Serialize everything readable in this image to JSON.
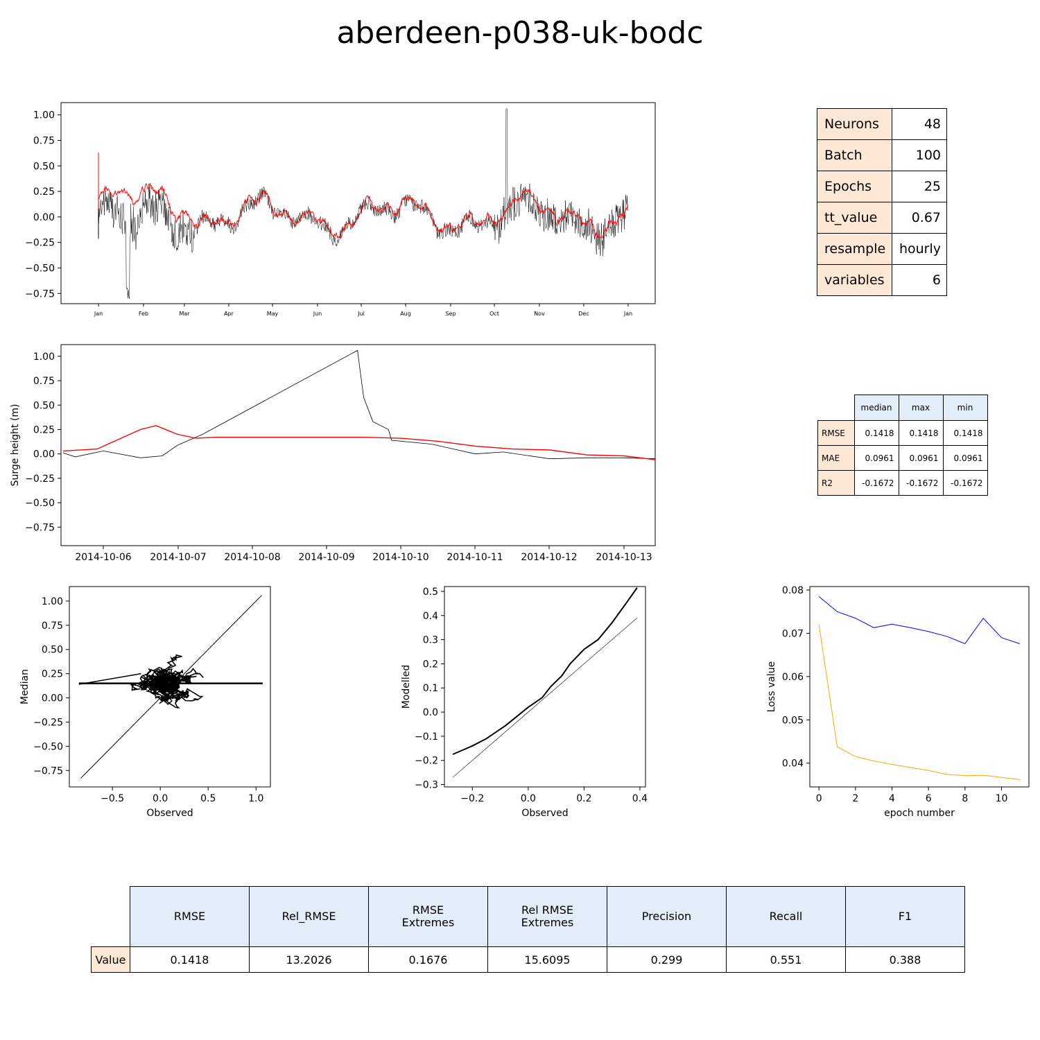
{
  "figure": {
    "title": "aberdeen-p038-uk-bodc",
    "colors": {
      "observed": "#000000",
      "predicted": "#ff0000",
      "loss_train": "#ffa500",
      "loss_val": "#0000ff",
      "row_header_bg": "#fde8d6",
      "col_header_bg": "#e3edf7"
    }
  },
  "params_table": {
    "rows": [
      {
        "label": "Neurons",
        "value": "48"
      },
      {
        "label": "Batch",
        "value": "100"
      },
      {
        "label": "Epochs",
        "value": "25"
      },
      {
        "label": "tt_value",
        "value": "0.67"
      },
      {
        "label": "resample",
        "value": "hourly"
      },
      {
        "label": "variables",
        "value": "6"
      }
    ]
  },
  "stats_table": {
    "columns": [
      "median",
      "max",
      "min"
    ],
    "rows": [
      {
        "label": "RMSE",
        "values": [
          "0.1418",
          "0.1418",
          "0.1418"
        ]
      },
      {
        "label": "MAE",
        "values": [
          "0.0961",
          "0.0961",
          "0.0961"
        ]
      },
      {
        "label": "R2",
        "values": [
          "-0.1672",
          "-0.1672",
          "-0.1672"
        ]
      }
    ]
  },
  "metrics_table": {
    "columns": [
      "RMSE",
      "Rel_RMSE",
      "RMSE\nExtremes",
      "Rel RMSE\n Extremes",
      "Precision",
      "Recall",
      "F1"
    ],
    "row_label": "Value",
    "values": [
      "0.1418",
      "13.2026",
      "0.1676",
      "15.6095",
      "0.299",
      "0.551",
      "0.388"
    ]
  },
  "chart_data": [
    {
      "id": "year_series",
      "type": "line",
      "title": "",
      "xlabel": "",
      "ylabel": "",
      "x_ticks": [
        "Jan",
        "Feb",
        "Mar",
        "Apr",
        "May",
        "Jun",
        "Jul",
        "Aug",
        "Sep",
        "Oct",
        "Nov",
        "Dec",
        "Jan"
      ],
      "ylim": [
        -0.85,
        1.12
      ],
      "y_ticks": [
        "1.00",
        "0.75",
        "0.50",
        "0.25",
        "0.00",
        "−0.25",
        "−0.50",
        "−0.75"
      ],
      "y_tick_values": [
        1.0,
        0.75,
        0.5,
        0.25,
        0.0,
        -0.25,
        -0.5,
        -0.75
      ],
      "series": [
        {
          "key": "observed",
          "color": "#000000",
          "approx": {
            "start_month": 0.0,
            "end_month": 12.0,
            "min": -0.83,
            "min_at_month": 0.65,
            "max": 1.06,
            "max_at_month": 9.27,
            "typical_range": [
              -0.25,
              0.3
            ]
          }
        },
        {
          "key": "predicted",
          "color": "#ff0000",
          "approx": {
            "start_month": 0.0,
            "end_month": 12.0,
            "initial": 0.63,
            "typical_range": [
              -0.2,
              0.45
            ]
          }
        }
      ]
    },
    {
      "id": "event_zoom",
      "type": "line",
      "ylabel": "Surge height (m)",
      "x_ticks": [
        "2014-10-06",
        "2014-10-07",
        "2014-10-08",
        "2014-10-09",
        "2014-10-10",
        "2014-10-11",
        "2014-10-12",
        "2014-10-13"
      ],
      "ylim": [
        -0.94,
        1.12
      ],
      "y_ticks": [
        "1.00",
        "0.75",
        "0.50",
        "0.25",
        "0.00",
        "−0.25",
        "−0.50",
        "−0.75"
      ],
      "y_tick_values": [
        1.0,
        0.75,
        0.5,
        0.25,
        0.0,
        -0.25,
        -0.5,
        -0.75
      ],
      "series": [
        {
          "key": "observed",
          "color": "#000000",
          "points": [
            [
              "2014-10-05 11:00",
              0.01
            ],
            [
              "2014-10-05 15:00",
              -0.03
            ],
            [
              "2014-10-06 00:00",
              0.03
            ],
            [
              "2014-10-06 12:00",
              -0.04
            ],
            [
              "2014-10-06 19:00",
              -0.02
            ],
            [
              "2014-10-07 00:00",
              0.09
            ],
            [
              "2014-10-07 08:00",
              0.2
            ],
            [
              "2014-10-09 10:00",
              1.06
            ],
            [
              "2014-10-09 12:00",
              0.58
            ],
            [
              "2014-10-09 15:00",
              0.33
            ],
            [
              "2014-10-09 20:00",
              0.25
            ],
            [
              "2014-10-09 21:00",
              0.14
            ],
            [
              "2014-10-10 10:00",
              0.1
            ],
            [
              "2014-10-11 00:00",
              0.0
            ],
            [
              "2014-10-11 09:00",
              0.02
            ],
            [
              "2014-10-12 00:00",
              -0.05
            ],
            [
              "2014-10-12 12:00",
              -0.04
            ],
            [
              "2014-10-13 00:00",
              -0.04
            ],
            [
              "2014-10-13 11:00",
              -0.05
            ]
          ]
        },
        {
          "key": "predicted",
          "color": "#ff0000",
          "points": [
            [
              "2014-10-05 11:00",
              0.03
            ],
            [
              "2014-10-05 22:00",
              0.05
            ],
            [
              "2014-10-06 12:00",
              0.25
            ],
            [
              "2014-10-06 17:00",
              0.29
            ],
            [
              "2014-10-07 00:00",
              0.2
            ],
            [
              "2014-10-07 06:00",
              0.16
            ],
            [
              "2014-10-07 12:00",
              0.17
            ],
            [
              "2014-10-09 12:00",
              0.17
            ],
            [
              "2014-10-10 00:00",
              0.16
            ],
            [
              "2014-10-10 12:00",
              0.13
            ],
            [
              "2014-10-11 00:00",
              0.08
            ],
            [
              "2014-10-11 12:00",
              0.05
            ],
            [
              "2014-10-12 00:00",
              0.04
            ],
            [
              "2014-10-12 12:00",
              -0.01
            ],
            [
              "2014-10-13 00:00",
              -0.02
            ],
            [
              "2014-10-13 11:00",
              -0.06
            ]
          ]
        }
      ]
    },
    {
      "id": "scatter_obs_median",
      "type": "scatter",
      "xlabel": "Observed",
      "ylabel": "Median",
      "xlim": [
        -0.95,
        1.15
      ],
      "ylim": [
        -0.92,
        1.15
      ],
      "x_ticks": [
        "−0.5",
        "0.0",
        "0.5",
        "1.0"
      ],
      "x_tick_values": [
        -0.5,
        0.0,
        0.5,
        1.0
      ],
      "y_ticks": [
        "1.00",
        "0.75",
        "0.50",
        "0.25",
        "0.00",
        "−0.25",
        "−0.50",
        "−0.75"
      ],
      "y_tick_values": [
        1.0,
        0.75,
        0.5,
        0.25,
        0.0,
        -0.25,
        -0.5,
        -0.75
      ],
      "reference_line": [
        [
          -0.83,
          -0.83
        ],
        [
          1.06,
          1.06
        ]
      ],
      "cloud": {
        "x_range": [
          -0.4,
          0.45
        ],
        "y_range": [
          -0.22,
          0.6
        ],
        "center": [
          0.08,
          0.17
        ]
      },
      "horizontal_band": {
        "y": 0.15,
        "x_range": [
          -0.85,
          1.07
        ]
      }
    },
    {
      "id": "qq_plot",
      "type": "line",
      "xlabel": "Observed",
      "ylabel": "Modelled",
      "xlim": [
        -0.3,
        0.42
      ],
      "ylim": [
        -0.31,
        0.52
      ],
      "x_ticks": [
        "−0.2",
        "0.0",
        "0.2",
        "0.4"
      ],
      "x_tick_values": [
        -0.2,
        0.0,
        0.2,
        0.4
      ],
      "y_ticks": [
        "0.5",
        "0.4",
        "0.3",
        "0.2",
        "0.1",
        "0.0",
        "−0.1",
        "−0.2",
        "−0.3"
      ],
      "y_tick_values": [
        0.5,
        0.4,
        0.3,
        0.2,
        0.1,
        0.0,
        -0.1,
        -0.2,
        -0.3
      ],
      "reference_line": [
        [
          -0.27,
          -0.27
        ],
        [
          0.39,
          0.39
        ]
      ],
      "series": [
        {
          "key": "quantiles",
          "color": "#000000",
          "x": [
            -0.27,
            -0.2,
            -0.15,
            -0.08,
            0.0,
            0.05,
            0.08,
            0.12,
            0.15,
            0.2,
            0.25,
            0.3,
            0.35,
            0.39
          ],
          "y": [
            -0.175,
            -0.14,
            -0.11,
            -0.055,
            0.02,
            0.06,
            0.105,
            0.15,
            0.2,
            0.26,
            0.3,
            0.37,
            0.45,
            0.515
          ]
        }
      ]
    },
    {
      "id": "loss_curve",
      "type": "line",
      "xlabel": "epoch number",
      "ylabel": "Loss value",
      "xlim": [
        -0.5,
        11.5
      ],
      "ylim": [
        0.0345,
        0.0808
      ],
      "x_ticks": [
        "0",
        "2",
        "4",
        "6",
        "8",
        "10"
      ],
      "x_tick_values": [
        0,
        2,
        4,
        6,
        8,
        10
      ],
      "y_ticks": [
        "0.08",
        "0.07",
        "0.06",
        "0.05",
        "0.04"
      ],
      "y_tick_values": [
        0.08,
        0.07,
        0.06,
        0.05,
        0.04
      ],
      "series": [
        {
          "key": "val_loss",
          "color": "#0000ff",
          "x": [
            0,
            1,
            2,
            3,
            4,
            5,
            6,
            7,
            8,
            9,
            10,
            11
          ],
          "y": [
            0.0785,
            0.075,
            0.0735,
            0.0713,
            0.0721,
            0.0713,
            0.0704,
            0.0693,
            0.0676,
            0.0735,
            0.069,
            0.0676
          ]
        },
        {
          "key": "train_loss",
          "color": "#ffa500",
          "x": [
            0,
            1,
            2,
            3,
            4,
            5,
            6,
            7,
            8,
            9,
            10,
            11
          ],
          "y": [
            0.072,
            0.0438,
            0.0415,
            0.0405,
            0.0397,
            0.039,
            0.0383,
            0.0374,
            0.0371,
            0.0372,
            0.0367,
            0.0362
          ]
        }
      ]
    }
  ]
}
